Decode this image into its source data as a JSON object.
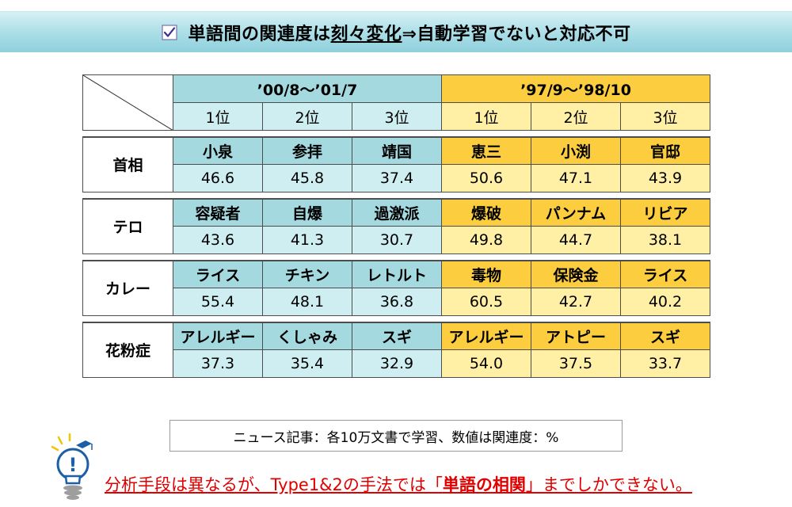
{
  "header": {
    "title_pre": "単語間の関連度は",
    "title_emph": "刻々変化",
    "title_post": "⇒自動学習でないと対応不可"
  },
  "table": {
    "period_a": "’00/8～’01/7",
    "period_b": "’97/9～’98/10",
    "ranks": [
      "1位",
      "2位",
      "3位",
      "1位",
      "2位",
      "3位"
    ],
    "groups": [
      {
        "label": "首相",
        "words": [
          "小泉",
          "参拝",
          "靖国",
          "恵三",
          "小渕",
          "官邸"
        ],
        "values": [
          "46.6",
          "45.8",
          "37.4",
          "50.6",
          "47.1",
          "43.9"
        ]
      },
      {
        "label": "テロ",
        "words": [
          "容疑者",
          "自爆",
          "過激派",
          "爆破",
          "パンナム",
          "リビア"
        ],
        "values": [
          "43.6",
          "41.3",
          "30.7",
          "49.8",
          "44.7",
          "38.1"
        ]
      },
      {
        "label": "カレー",
        "words": [
          "ライス",
          "チキン",
          "レトルト",
          "毒物",
          "保険金",
          "ライス"
        ],
        "values": [
          "55.4",
          "48.1",
          "36.8",
          "60.5",
          "42.7",
          "40.2"
        ]
      },
      {
        "label": "花粉症",
        "words": [
          "アレルギー",
          "くしゃみ",
          "スギ",
          "アレルギー",
          "アトピー",
          "スギ"
        ],
        "values": [
          "37.3",
          "35.4",
          "32.9",
          "54.0",
          "37.5",
          "33.7"
        ]
      }
    ]
  },
  "note": "ニュース記事：各10万文書で学習、数値は関連度：%",
  "conclusion": {
    "pre": "分析手段は異なるが、Type1&2の手法では「",
    "emph": "単語の相関",
    "post": "」までしかできない。"
  },
  "colors": {
    "period_a_header": "#a4d9df",
    "period_a_value": "#cfeef2",
    "period_b_header": "#fccd3f",
    "period_b_value": "#fff0a6",
    "conclusion_text": "#e00000"
  },
  "icons": [
    "checkbox-check-icon",
    "lightbulb-icon"
  ]
}
